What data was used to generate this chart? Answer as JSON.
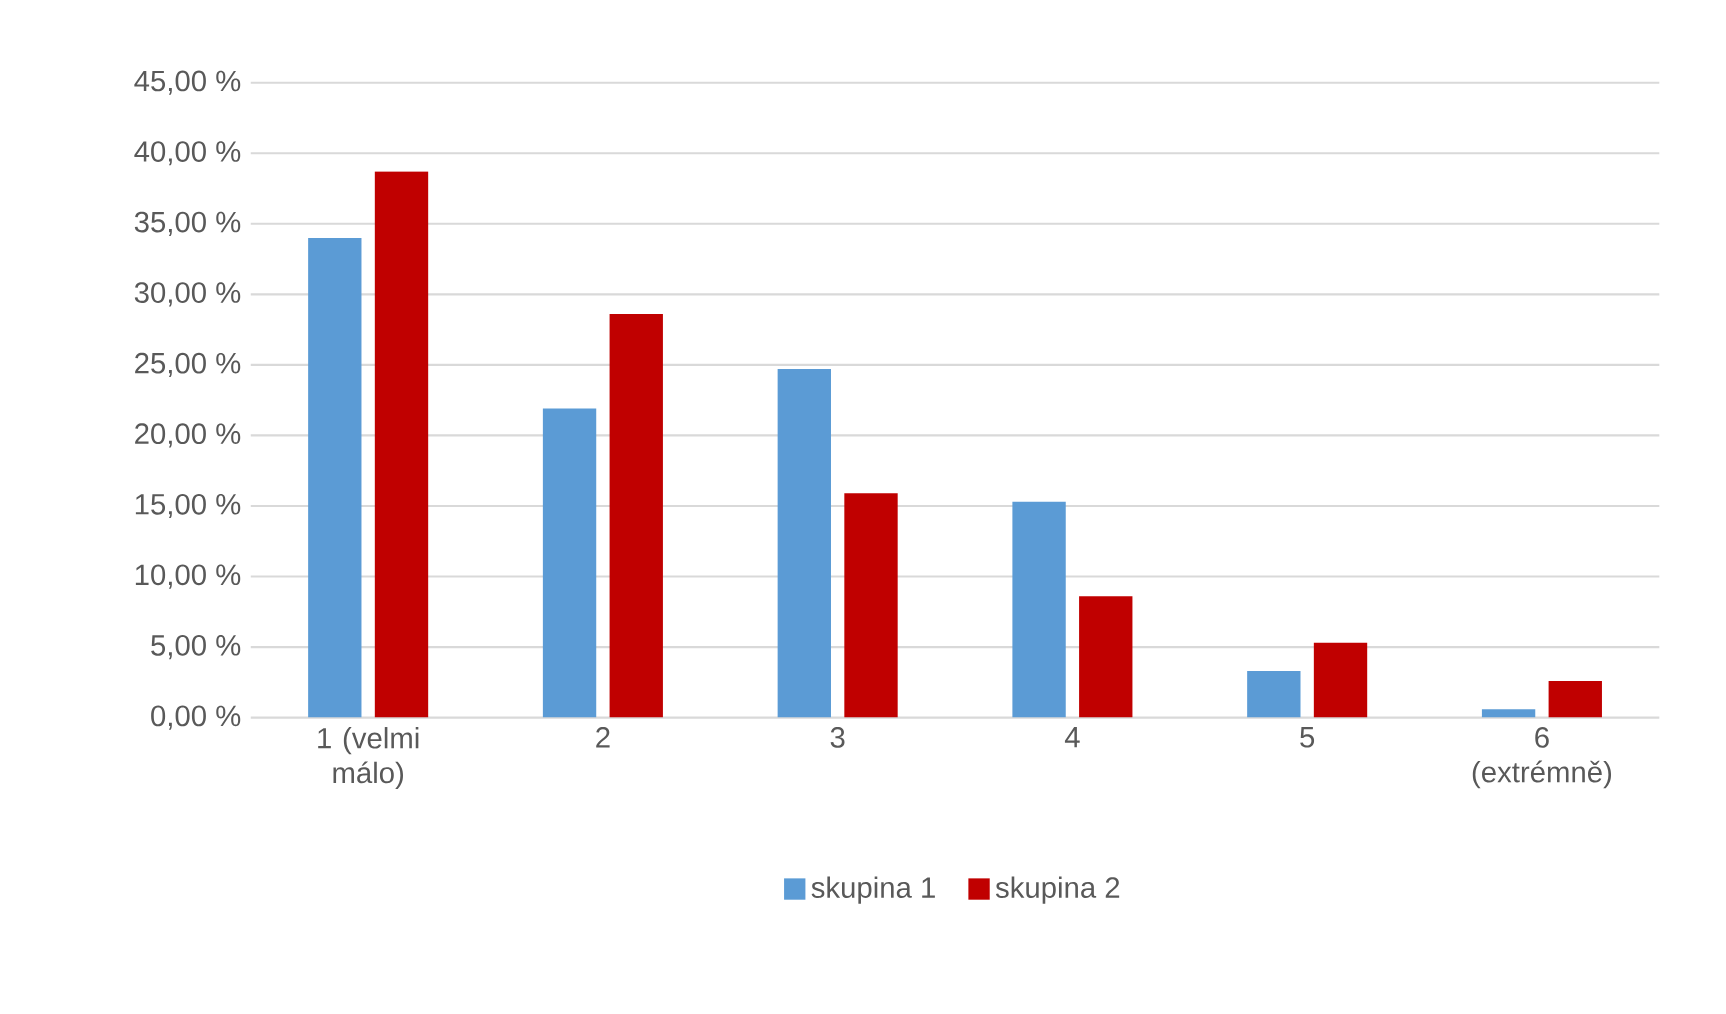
{
  "chart_data": {
    "type": "bar",
    "categories": [
      "1 (velmi málo)",
      "2",
      "3",
      "4",
      "5",
      "6 (extrémně)"
    ],
    "series": [
      {
        "name": "skupina 1",
        "color": "#5b9bd5",
        "values": [
          34.0,
          21.9,
          24.7,
          15.3,
          3.3,
          0.6
        ]
      },
      {
        "name": "skupina 2",
        "color": "#c00000",
        "values": [
          38.7,
          28.6,
          15.9,
          8.6,
          5.3,
          2.6
        ]
      }
    ],
    "ylim": [
      0,
      45
    ],
    "yticks": [
      {
        "value": 0,
        "label": "0,00 %"
      },
      {
        "value": 5,
        "label": "5,00 %"
      },
      {
        "value": 10,
        "label": "10,00 %"
      },
      {
        "value": 15,
        "label": "15,00 %"
      },
      {
        "value": 20,
        "label": "20,00 %"
      },
      {
        "value": 25,
        "label": "25,00 %"
      },
      {
        "value": 30,
        "label": "30,00 %"
      },
      {
        "value": 35,
        "label": "35,00 %"
      },
      {
        "value": 40,
        "label": "40,00 %"
      },
      {
        "value": 45,
        "label": "45,00 %"
      }
    ],
    "grid": "y",
    "legend": "bottom"
  }
}
